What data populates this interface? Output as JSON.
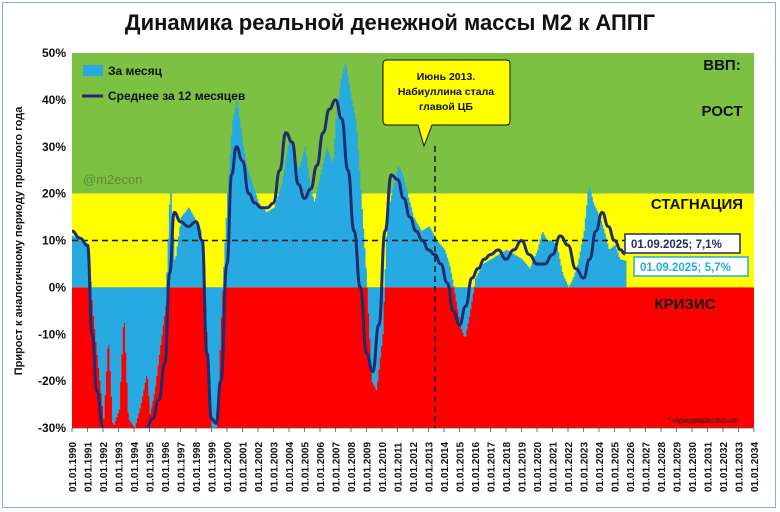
{
  "chart_data": {
    "type": "area",
    "title": "Динамика реальной денежной массы М2 к АППГ",
    "ylabel": "Прирост к аналогичному периоду прошлого года",
    "ylim": [
      -30,
      50
    ],
    "y_ticks": [
      "50%",
      "40%",
      "30%",
      "20%",
      "10%",
      "0%",
      "-10%",
      "-20%",
      "-30%"
    ],
    "x_ticks": [
      "01.01.1990",
      "01.01.1991",
      "01.01.1992",
      "01.01.1993",
      "01.01.1994",
      "01.01.1995",
      "01.01.1996",
      "01.01.1997",
      "01.01.1998",
      "01.01.1999",
      "01.01.2000",
      "01.01.2001",
      "01.01.2002",
      "01.01.2003",
      "01.01.2004",
      "01.01.2005",
      "01.01.2006",
      "01.01.2007",
      "01.01.2008",
      "01.01.2009",
      "01.01.2010",
      "01.01.2011",
      "01.01.2012",
      "01.01.2013",
      "01.01.2014",
      "01.01.2015",
      "01.01.2016",
      "01.01.2017",
      "01.01.2018",
      "01.01.2019",
      "01.01.2020",
      "01.01.2021",
      "01.01.2022",
      "01.01.2023",
      "01.01.2024",
      "01.01.2025",
      "01.01.2026",
      "01.01.2027",
      "01.01.2028",
      "01.01.2029",
      "01.01.2030",
      "01.01.2031",
      "01.01.2032",
      "01.01.2033",
      "01.01.2034"
    ],
    "zones": [
      {
        "label": "ВВП:",
        "range": [
          20,
          50
        ],
        "color": "#7dc142"
      },
      {
        "label": "РОСТ",
        "range": [
          20,
          50
        ],
        "color": "#7dc142"
      },
      {
        "label": "СТАГНАЦИЯ",
        "range": [
          0,
          20
        ],
        "color": "#ffff00"
      },
      {
        "label": "КРИЗИС",
        "range": [
          -30,
          0
        ],
        "color": "#ff0000"
      }
    ],
    "reference_line": 10,
    "series": [
      {
        "name": "За месяц",
        "color": "#27aae1",
        "x": [
          1990.0,
          1991.0,
          1991.3,
          1991.6,
          1992.0,
          1992.3,
          1992.6,
          1993.0,
          1993.3,
          1993.6,
          1994.0,
          1994.4,
          1994.8,
          1995.0,
          1995.3,
          1995.6,
          1996.0,
          1996.3,
          1996.6,
          1997.0,
          1997.5,
          1998.0,
          1998.3,
          1998.6,
          1999.0,
          1999.3,
          1999.6,
          2000.0,
          2000.3,
          2000.6,
          2001.0,
          2001.3,
          2001.6,
          2002.0,
          2002.5,
          2003.0,
          2003.5,
          2004.0,
          2004.3,
          2004.6,
          2005.0,
          2005.3,
          2005.6,
          2006.0,
          2006.4,
          2006.8,
          2007.0,
          2007.3,
          2007.6,
          2008.0,
          2008.3,
          2008.6,
          2009.0,
          2009.3,
          2009.6,
          2010.0,
          2010.3,
          2010.6,
          2011.0,
          2011.3,
          2011.6,
          2012.0,
          2012.5,
          2013.0,
          2013.5,
          2014.0,
          2014.3,
          2014.6,
          2015.0,
          2015.3,
          2015.6,
          2016.0,
          2016.5,
          2017.0,
          2017.5,
          2018.0,
          2018.5,
          2019.0,
          2019.5,
          2020.0,
          2020.3,
          2020.6,
          2021.0,
          2021.3,
          2021.6,
          2022.0,
          2022.3,
          2022.6,
          2023.0,
          2023.3,
          2023.6,
          2024.0,
          2024.3,
          2024.6,
          2025.0,
          2025.3,
          2025.67
        ],
        "values": [
          11,
          9,
          -5,
          -15,
          -28,
          -10,
          -30,
          -26,
          -5,
          -28,
          -30,
          -25,
          -18,
          -27,
          -22,
          -14,
          -4,
          22,
          5,
          15,
          17,
          14,
          12,
          -5,
          -32,
          -30,
          -5,
          20,
          35,
          40,
          30,
          25,
          22,
          18,
          16,
          17,
          22,
          32,
          28,
          25,
          30,
          22,
          18,
          24,
          30,
          26,
          36,
          44,
          48,
          40,
          35,
          20,
          0,
          -20,
          -22,
          -10,
          15,
          20,
          26,
          24,
          20,
          15,
          12,
          13,
          10,
          8,
          5,
          0,
          -8,
          -11,
          -6,
          2,
          5,
          6,
          7,
          8,
          7,
          6,
          4,
          8,
          12,
          10,
          10,
          8,
          3,
          0,
          2,
          5,
          12,
          22,
          18,
          15,
          12,
          8,
          9,
          6,
          5.7
        ]
      },
      {
        "name": "Среднее за 12 месяцев",
        "color": "#1f2c6e",
        "x": [
          1990.0,
          1990.5,
          1991.0,
          1991.3,
          1991.6,
          1992.0,
          1992.4,
          1992.8,
          1993.2,
          1993.6,
          1994.0,
          1994.4,
          1994.8,
          1995.2,
          1995.6,
          1996.0,
          1996.3,
          1996.6,
          1997.0,
          1997.5,
          1998.0,
          1998.4,
          1998.7,
          1999.0,
          1999.3,
          1999.6,
          2000.0,
          2000.3,
          2000.6,
          2001.0,
          2001.4,
          2001.8,
          2002.2,
          2002.6,
          2003.0,
          2003.4,
          2003.8,
          2004.2,
          2004.6,
          2005.0,
          2005.4,
          2005.8,
          2006.2,
          2006.6,
          2007.0,
          2007.4,
          2007.8,
          2008.2,
          2008.6,
          2009.0,
          2009.4,
          2009.8,
          2010.2,
          2010.6,
          2011.0,
          2011.4,
          2011.8,
          2012.2,
          2012.6,
          2013.0,
          2013.4,
          2013.8,
          2014.2,
          2014.6,
          2015.0,
          2015.4,
          2015.8,
          2016.2,
          2016.6,
          2017.0,
          2017.5,
          2018.0,
          2018.5,
          2019.0,
          2019.5,
          2020.0,
          2020.5,
          2021.0,
          2021.5,
          2022.0,
          2022.5,
          2023.0,
          2023.4,
          2023.8,
          2024.2,
          2024.6,
          2025.0,
          2025.4,
          2025.67
        ],
        "values": [
          12,
          10.5,
          9,
          -10,
          -22,
          -30,
          -32,
          -31,
          -32,
          -31,
          -32,
          -31,
          -30,
          -28,
          -24,
          -16,
          3,
          16,
          14,
          13,
          14,
          10,
          -14,
          -28,
          -29,
          -20,
          5,
          24,
          30,
          27,
          20,
          18,
          17,
          17,
          18,
          25,
          33,
          31,
          22,
          19,
          21,
          26,
          33,
          38,
          40,
          36,
          25,
          12,
          0,
          -14,
          -18,
          -8,
          12,
          24,
          23,
          19,
          15,
          12,
          10,
          8,
          7,
          5,
          1,
          -5,
          -8,
          -4,
          2,
          4,
          6,
          7,
          8,
          6,
          8,
          10,
          7,
          5,
          5,
          7,
          11,
          9,
          4,
          2,
          6,
          12,
          16,
          13,
          10,
          8,
          7.1
        ]
      }
    ],
    "legend": [
      "За месяц",
      "Среднее за 12 месяцев"
    ],
    "annotations": {
      "callout": "Июнь 2013. Набиуллина стала главой ЦБ",
      "callout_lines": [
        "Июнь 2013.",
        "Набиуллина стала",
        "главой ЦБ"
      ],
      "callout_x": 2013.42,
      "label_avg": "01.09.2025; 7,1%",
      "label_month": "01.09.2025; 5,7%",
      "watermark": "@m2econ",
      "footnote": "*-предварительно"
    }
  }
}
